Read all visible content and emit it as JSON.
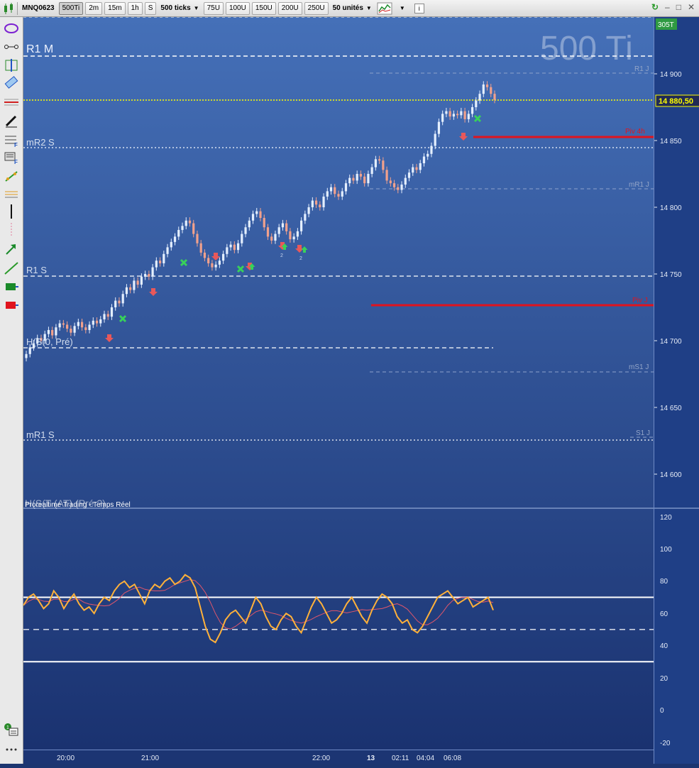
{
  "toolbar": {
    "symbol": "MNQ0623",
    "timeframes": [
      "500Ti",
      "2m",
      "15m",
      "1h",
      "S"
    ],
    "ticks_dropdown": "500 ticks",
    "tick_buttons": [
      "75U",
      "100U",
      "150U",
      "200U",
      "250U"
    ],
    "units_dropdown": "50 unités"
  },
  "chart": {
    "watermark": "500 Ti",
    "counter": "305T",
    "price_last": "14 880,50",
    "price_ticks": [
      "14 900",
      "14 850",
      "14 800",
      "14 750",
      "14 700",
      "14 650",
      "14 600"
    ],
    "levels": {
      "r1m": "R1 M",
      "mr2s": "mR2 S",
      "r1s": "R1 S",
      "hs_pre": "H(S(0, Pré)",
      "mr1s": "mR1 S",
      "piv4h": "Piv 4h",
      "pivj": "Piv J",
      "r1j": "R1 J",
      "mr1j": "mR1 J",
      "ms1j": "mS1 J",
      "s1j": "S1 J"
    },
    "signal_counts": [
      "2",
      "2"
    ]
  },
  "indicator": {
    "title": "Prorealtime Trading - Temps Réel",
    "title_overlap": "H(S(T (AT) (Pré ?)",
    "axis_ticks": [
      "120",
      "100",
      "80",
      "60",
      "40",
      "20",
      "0",
      "-20"
    ],
    "levels": [
      70,
      50,
      30
    ],
    "colors": {
      "main": "#ffb13a",
      "signal": "#e0566b"
    }
  },
  "time_axis": {
    "labels": [
      "20:00",
      "21:00",
      "22:00",
      "13",
      "02:11",
      "04:04",
      "06:08"
    ]
  },
  "colors": {
    "bg_top": "#4570b8",
    "bg_bottom": "#1a3270",
    "up_candle": "#e4efff",
    "down_candle": "#f1a18c",
    "pivot_red": "#e0141e",
    "last_price": "#ffff00",
    "arrow_down": "#e8585a",
    "arrow_up": "#38d15a"
  }
}
